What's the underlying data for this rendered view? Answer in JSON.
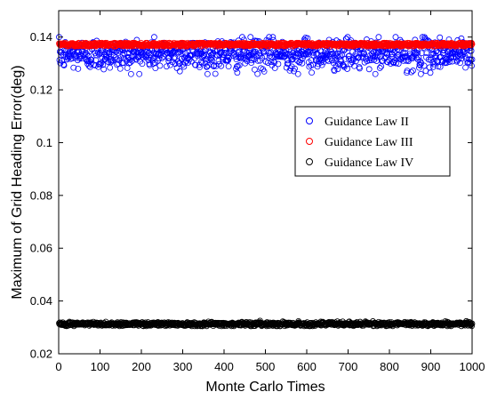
{
  "chart_data": {
    "type": "scatter",
    "title": "",
    "xlabel": "Monte Carlo Times",
    "ylabel": "Maximum of Grid Heading Error(deg)",
    "xlim": [
      0,
      1000
    ],
    "ylim": [
      0.02,
      0.15
    ],
    "xticks": [
      "0",
      "100",
      "200",
      "300",
      "400",
      "500",
      "600",
      "700",
      "800",
      "900",
      "1000"
    ],
    "yticks": [
      "0.02",
      "0.04",
      "0.06",
      "0.08",
      "0.1",
      "0.12",
      "0.14"
    ],
    "grid": false,
    "legend_position": "right",
    "series": [
      {
        "name": "Guidance Law II",
        "color": "#0000ff",
        "marker": "open-circle",
        "n_points": 1000,
        "center": 0.1335,
        "spread": 0.003,
        "min": 0.126,
        "max": 0.14
      },
      {
        "name": "Guidance Law III",
        "color": "#ff0000",
        "marker": "open-circle",
        "n_points": 1000,
        "center": 0.1372,
        "spread": 0.0004,
        "min": 0.1365,
        "max": 0.1378
      },
      {
        "name": "Guidance Law IV",
        "color": "#000000",
        "marker": "open-circle",
        "n_points": 1000,
        "center": 0.0313,
        "spread": 0.0004,
        "min": 0.0305,
        "max": 0.0325
      }
    ]
  }
}
